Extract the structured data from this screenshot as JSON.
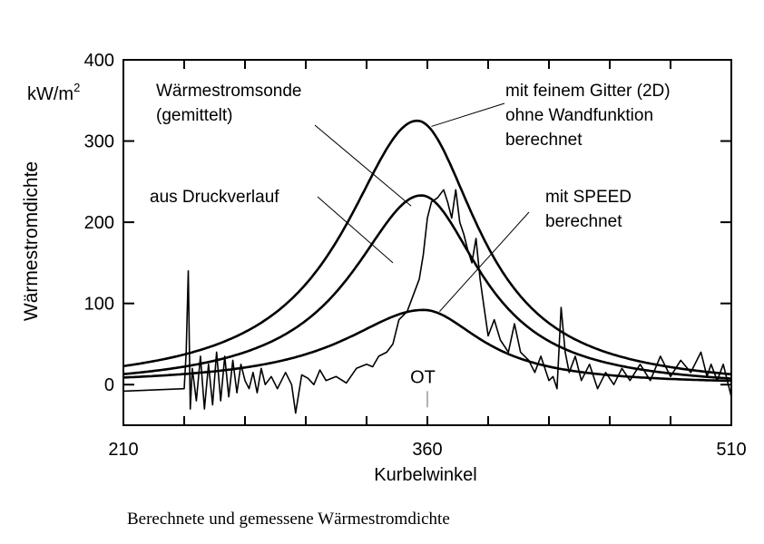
{
  "caption": "Berechnete und gemessene Wärmestromdichte",
  "chart_data": {
    "type": "line",
    "xlabel": "Kurbelwinkel",
    "ylabel": "Wärmestromdichte",
    "yunit": {
      "base": "kW/m",
      "sup": "2"
    },
    "xlim": [
      210,
      510
    ],
    "ylim": [
      -50,
      400
    ],
    "xticks": [
      210,
      360,
      510
    ],
    "yticks": [
      0,
      100,
      200,
      300,
      400
    ],
    "grid": false,
    "colors": {
      "line": "#000000",
      "ot_marker": "#999999"
    },
    "ot_label": "OT",
    "ot_position": 360,
    "labels": {
      "sonde": [
        "Wärmestromsonde",
        "(gemittelt)"
      ],
      "druck": [
        "aus Druckverlauf"
      ],
      "feingitter": [
        "mit feinem Gitter (2D)",
        "ohne Wandfunktion",
        "berechnet"
      ],
      "speed": [
        "mit SPEED",
        "berechnet"
      ]
    },
    "series": [
      {
        "id": "feingitter",
        "peak_x": 355,
        "peak_y": 325,
        "hwhm_lead": 44,
        "hwhm_trail": 37,
        "baseline": -5,
        "x": [
          210,
          240,
          270,
          290,
          300,
          310,
          320,
          330,
          340,
          350,
          355,
          360,
          370,
          380,
          390,
          400,
          420,
          450,
          480,
          510
        ],
        "y": [
          -3,
          4,
          18,
          35,
          55,
          82,
          120,
          172,
          235,
          305,
          325,
          318,
          265,
          190,
          125,
          85,
          38,
          12,
          2,
          -3
        ]
      },
      {
        "id": "druck",
        "peak_x": 357,
        "peak_y": 233,
        "hwhm_lead": 42,
        "hwhm_trail": 36,
        "baseline": -5,
        "x": [
          210,
          240,
          270,
          290,
          300,
          310,
          320,
          330,
          340,
          350,
          357,
          365,
          375,
          385,
          395,
          410,
          430,
          460,
          490,
          510
        ],
        "y": [
          -4,
          2,
          10,
          22,
          35,
          52,
          78,
          112,
          160,
          210,
          233,
          224,
          185,
          135,
          92,
          55,
          25,
          8,
          0,
          -3
        ]
      },
      {
        "id": "speed",
        "peak_x": 358,
        "peak_y": 92,
        "hwhm_lead": 48,
        "hwhm_trail": 35,
        "baseline": 0,
        "x": [
          210,
          240,
          270,
          290,
          310,
          330,
          340,
          350,
          358,
          365,
          375,
          385,
          400,
          420,
          450,
          480,
          510
        ],
        "y": [
          -5,
          -2,
          5,
          12,
          25,
          50,
          68,
          85,
          92,
          86,
          70,
          52,
          33,
          18,
          7,
          2,
          0
        ]
      },
      {
        "id": "sonde",
        "noisy": true,
        "x": [
          210,
          240,
          241,
          242,
          243,
          244,
          246,
          248,
          250,
          252,
          254,
          256,
          258,
          260,
          262,
          264,
          266,
          268,
          270,
          272,
          274,
          276,
          278,
          280,
          283,
          286,
          290,
          293,
          295,
          298,
          301,
          304,
          307,
          310,
          315,
          320,
          325,
          330,
          333,
          336,
          340,
          343,
          346,
          350,
          353,
          356,
          358,
          360,
          362,
          365,
          368,
          370,
          372,
          374,
          376,
          378,
          380,
          382,
          384,
          386,
          388,
          390,
          393,
          396,
          400,
          403,
          406,
          410,
          413,
          416,
          420,
          422,
          424,
          426,
          428,
          430,
          433,
          436,
          440,
          444,
          448,
          452,
          456,
          460,
          465,
          470,
          475,
          480,
          485,
          490,
          495,
          498,
          500,
          503,
          506,
          510
        ],
        "y": [
          -8,
          -5,
          40,
          140,
          -30,
          20,
          -20,
          35,
          -30,
          25,
          -25,
          40,
          -20,
          35,
          -15,
          30,
          -10,
          25,
          5,
          -5,
          15,
          -10,
          20,
          0,
          10,
          -5,
          15,
          0,
          -35,
          12,
          8,
          0,
          18,
          5,
          10,
          2,
          20,
          25,
          22,
          35,
          40,
          50,
          80,
          90,
          110,
          130,
          160,
          205,
          225,
          230,
          240,
          225,
          205,
          240,
          200,
          185,
          165,
          150,
          180,
          130,
          95,
          60,
          80,
          55,
          40,
          75,
          40,
          30,
          15,
          35,
          5,
          10,
          -5,
          95,
          40,
          15,
          35,
          5,
          25,
          -5,
          15,
          0,
          20,
          5,
          25,
          5,
          35,
          10,
          30,
          15,
          40,
          10,
          25,
          5,
          25,
          -15
        ]
      }
    ]
  }
}
